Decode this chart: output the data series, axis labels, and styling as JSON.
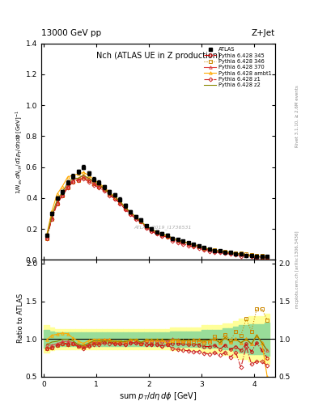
{
  "title_top": "13000 GeV pp",
  "title_right": "Z+Jet",
  "plot_title": "Nch (ATLAS UE in Z production)",
  "xlabel": "sum p_{T}/d\\eta d\\phi [GeV]",
  "ylabel_main": "1/N_{ev} dN_{ch}/dsum p_{T}/d\\eta d\\phi [GeV]",
  "ylabel_ratio": "Ratio to ATLAS",
  "right_label_top": "Rivet 3.1.10, ≥ 2.6M events",
  "right_label_bottom": "mcplots.cern.ch [arXiv:1306.3436]",
  "watermark": "ATLAS_2019_I1736531",
  "ylim_main": [
    0.0,
    1.4
  ],
  "ylim_ratio": [
    0.5,
    2.05
  ],
  "xlim": [
    -0.05,
    4.4
  ],
  "x_edges": [
    0.0,
    0.1,
    0.2,
    0.3,
    0.4,
    0.5,
    0.6,
    0.7,
    0.8,
    0.9,
    1.0,
    1.1,
    1.2,
    1.3,
    1.4,
    1.5,
    1.6,
    1.7,
    1.8,
    1.9,
    2.0,
    2.1,
    2.2,
    2.3,
    2.4,
    2.5,
    2.6,
    2.7,
    2.8,
    2.9,
    3.0,
    3.1,
    3.2,
    3.3,
    3.4,
    3.5,
    3.6,
    3.7,
    3.8,
    3.9,
    4.0,
    4.1,
    4.2,
    4.3
  ],
  "x_atlas": [
    0.05,
    0.15,
    0.25,
    0.35,
    0.45,
    0.55,
    0.65,
    0.75,
    0.85,
    0.95,
    1.05,
    1.15,
    1.25,
    1.35,
    1.45,
    1.55,
    1.65,
    1.75,
    1.85,
    1.95,
    2.05,
    2.15,
    2.25,
    2.35,
    2.45,
    2.55,
    2.65,
    2.75,
    2.85,
    2.95,
    3.05,
    3.15,
    3.25,
    3.35,
    3.45,
    3.55,
    3.65,
    3.75,
    3.85,
    3.95,
    4.05,
    4.15,
    4.25
  ],
  "y_atlas": [
    0.16,
    0.3,
    0.4,
    0.44,
    0.5,
    0.54,
    0.57,
    0.6,
    0.56,
    0.52,
    0.5,
    0.47,
    0.44,
    0.42,
    0.39,
    0.35,
    0.31,
    0.28,
    0.26,
    0.22,
    0.2,
    0.18,
    0.17,
    0.16,
    0.14,
    0.13,
    0.12,
    0.11,
    0.1,
    0.09,
    0.08,
    0.07,
    0.06,
    0.06,
    0.05,
    0.05,
    0.04,
    0.04,
    0.03,
    0.03,
    0.02,
    0.02,
    0.02
  ],
  "y_err_atlas": [
    0.008,
    0.01,
    0.012,
    0.012,
    0.012,
    0.014,
    0.014,
    0.014,
    0.014,
    0.013,
    0.013,
    0.013,
    0.013,
    0.012,
    0.012,
    0.012,
    0.011,
    0.01,
    0.01,
    0.009,
    0.009,
    0.008,
    0.008,
    0.008,
    0.007,
    0.007,
    0.006,
    0.006,
    0.006,
    0.005,
    0.005,
    0.004,
    0.004,
    0.004,
    0.003,
    0.003,
    0.003,
    0.003,
    0.002,
    0.002,
    0.002,
    0.002,
    0.002
  ],
  "atlas_rel_err_lo": [
    0.12,
    0.1,
    0.09,
    0.09,
    0.09,
    0.09,
    0.09,
    0.09,
    0.09,
    0.09,
    0.09,
    0.09,
    0.09,
    0.09,
    0.09,
    0.09,
    0.09,
    0.09,
    0.09,
    0.09,
    0.09,
    0.09,
    0.09,
    0.09,
    0.1,
    0.1,
    0.1,
    0.1,
    0.1,
    0.1,
    0.12,
    0.12,
    0.12,
    0.12,
    0.14,
    0.14,
    0.16,
    0.18,
    0.18,
    0.2,
    0.2,
    0.2,
    0.22
  ],
  "atlas_rel_err_hi": [
    0.12,
    0.1,
    0.09,
    0.09,
    0.09,
    0.09,
    0.09,
    0.09,
    0.09,
    0.09,
    0.09,
    0.09,
    0.09,
    0.09,
    0.09,
    0.09,
    0.09,
    0.09,
    0.09,
    0.09,
    0.09,
    0.09,
    0.09,
    0.09,
    0.1,
    0.1,
    0.1,
    0.1,
    0.1,
    0.1,
    0.12,
    0.12,
    0.12,
    0.12,
    0.14,
    0.14,
    0.16,
    0.18,
    0.18,
    0.2,
    0.2,
    0.2,
    0.22
  ],
  "series": [
    {
      "label": "Pythia 6.428 345",
      "color": "#cc0000",
      "linestyle": "-.",
      "marker": "o",
      "y": [
        0.14,
        0.265,
        0.365,
        0.415,
        0.47,
        0.505,
        0.515,
        0.535,
        0.515,
        0.495,
        0.475,
        0.455,
        0.425,
        0.395,
        0.365,
        0.325,
        0.295,
        0.265,
        0.245,
        0.205,
        0.185,
        0.167,
        0.155,
        0.148,
        0.132,
        0.122,
        0.112,
        0.102,
        0.093,
        0.083,
        0.072,
        0.063,
        0.055,
        0.052,
        0.046,
        0.043,
        0.036,
        0.034,
        0.028,
        0.025,
        0.019,
        0.017,
        0.015
      ]
    },
    {
      "label": "Pythia 6.428 346",
      "color": "#cc8800",
      "linestyle": ":",
      "marker": "s",
      "y": [
        0.14,
        0.265,
        0.365,
        0.415,
        0.465,
        0.505,
        0.515,
        0.535,
        0.515,
        0.495,
        0.475,
        0.455,
        0.425,
        0.405,
        0.375,
        0.335,
        0.305,
        0.275,
        0.245,
        0.215,
        0.195,
        0.175,
        0.165,
        0.155,
        0.138,
        0.127,
        0.116,
        0.106,
        0.097,
        0.087,
        0.076,
        0.067,
        0.062,
        0.058,
        0.053,
        0.049,
        0.044,
        0.042,
        0.038,
        0.033,
        0.028,
        0.028,
        0.025
      ]
    },
    {
      "label": "Pythia 6.428 370",
      "color": "#dd4444",
      "linestyle": "-",
      "marker": "^",
      "y": [
        0.148,
        0.275,
        0.375,
        0.425,
        0.485,
        0.515,
        0.525,
        0.545,
        0.525,
        0.505,
        0.485,
        0.465,
        0.435,
        0.405,
        0.375,
        0.335,
        0.305,
        0.275,
        0.245,
        0.215,
        0.196,
        0.176,
        0.165,
        0.156,
        0.14,
        0.129,
        0.118,
        0.108,
        0.099,
        0.089,
        0.078,
        0.069,
        0.06,
        0.057,
        0.051,
        0.048,
        0.04,
        0.038,
        0.03,
        0.028,
        0.021,
        0.019,
        0.017
      ]
    },
    {
      "label": "Pythia 6.428 ambt1",
      "color": "#ffaa00",
      "linestyle": "-",
      "marker": "^",
      "y": [
        0.158,
        0.315,
        0.425,
        0.475,
        0.535,
        0.548,
        0.555,
        0.565,
        0.548,
        0.518,
        0.497,
        0.467,
        0.437,
        0.407,
        0.377,
        0.337,
        0.307,
        0.277,
        0.248,
        0.218,
        0.198,
        0.178,
        0.168,
        0.15,
        0.138,
        0.128,
        0.118,
        0.108,
        0.099,
        0.089,
        0.078,
        0.069,
        0.06,
        0.057,
        0.051,
        0.048,
        0.04,
        0.038,
        0.03,
        0.028,
        0.021,
        0.019,
        0.01
      ]
    },
    {
      "label": "Pythia 6.428 z1",
      "color": "#cc2222",
      "linestyle": "-.",
      "marker": "D",
      "y": [
        0.14,
        0.265,
        0.365,
        0.415,
        0.465,
        0.505,
        0.515,
        0.525,
        0.505,
        0.485,
        0.465,
        0.445,
        0.415,
        0.395,
        0.365,
        0.325,
        0.295,
        0.265,
        0.245,
        0.205,
        0.185,
        0.167,
        0.155,
        0.148,
        0.122,
        0.112,
        0.102,
        0.093,
        0.083,
        0.075,
        0.065,
        0.056,
        0.049,
        0.047,
        0.041,
        0.038,
        0.033,
        0.025,
        0.027,
        0.02,
        0.014,
        0.014,
        0.013
      ]
    },
    {
      "label": "Pythia 6.428 z2",
      "color": "#888800",
      "linestyle": "-",
      "marker": null,
      "y": [
        0.148,
        0.288,
        0.388,
        0.438,
        0.498,
        0.528,
        0.528,
        0.548,
        0.528,
        0.508,
        0.488,
        0.458,
        0.428,
        0.408,
        0.378,
        0.338,
        0.308,
        0.278,
        0.248,
        0.218,
        0.198,
        0.178,
        0.168,
        0.158,
        0.14,
        0.129,
        0.118,
        0.108,
        0.099,
        0.089,
        0.078,
        0.069,
        0.06,
        0.057,
        0.051,
        0.048,
        0.04,
        0.038,
        0.03,
        0.028,
        0.021,
        0.019,
        0.017
      ]
    }
  ]
}
